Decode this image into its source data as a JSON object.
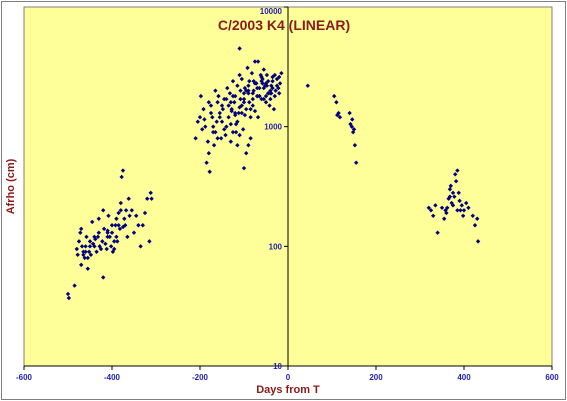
{
  "chart_data": {
    "type": "scatter",
    "title": "C/2003 K4 (LINEAR)",
    "xlabel": "Days from T",
    "ylabel": "Afrho (cm)",
    "xlim": [
      -600,
      600
    ],
    "ylim": [
      10,
      10000
    ],
    "yscale": "log",
    "xticks": [
      "-600",
      "-400",
      "-200",
      "0",
      "200",
      "400",
      "600"
    ],
    "yticks": [
      "10",
      "100",
      "1000",
      "10000"
    ],
    "grid": false,
    "legend": "none",
    "colors": {
      "plot_background": "#ffff99",
      "marker": "#000080",
      "title": "#8b1a1a",
      "tick_labels": "#1f1fb4"
    },
    "series": [
      {
        "x": [
          -500,
          -498,
          -485,
          -480,
          -478,
          -475,
          -472,
          -470,
          -468,
          -465,
          -462,
          -460,
          -458,
          -455,
          -452,
          -450,
          -448,
          -445,
          -443,
          -440,
          -438,
          -435,
          -432,
          -430,
          -428,
          -425,
          -422,
          -420,
          -418,
          -415,
          -412,
          -410,
          -408,
          -405,
          -402,
          -400,
          -398,
          -395,
          -392,
          -390,
          -388,
          -385,
          -382,
          -380,
          -378,
          -375,
          -372,
          -370,
          -368,
          -365,
          -362,
          -360,
          -355,
          -350,
          -345,
          -340,
          -335,
          -330,
          -325,
          -320,
          -315,
          -312,
          -310,
          -430,
          -420,
          -410,
          -400,
          -390,
          -385,
          -380,
          -375,
          -440,
          -450,
          -455,
          -460,
          -465,
          -470,
          -410,
          -395
        ],
        "y": [
          40,
          37,
          47,
          95,
          85,
          110,
          130,
          140,
          100,
          90,
          80,
          100,
          120,
          65,
          90,
          110,
          85,
          160,
          105,
          100,
          115,
          90,
          120,
          130,
          100,
          95,
          110,
          55,
          140,
          105,
          95,
          120,
          180,
          120,
          100,
          130,
          90,
          95,
          150,
          170,
          110,
          190,
          140,
          200,
          380,
          430,
          170,
          150,
          200,
          120,
          250,
          180,
          200,
          130,
          180,
          150,
          100,
          150,
          190,
          250,
          110,
          280,
          250,
          170,
          200,
          130,
          150,
          120,
          150,
          230,
          145,
          120,
          100,
          80,
          90,
          85,
          70,
          135,
          110
        ]
      },
      {
        "x": [
          -210,
          -205,
          -200,
          -198,
          -195,
          -192,
          -190,
          -188,
          -185,
          -182,
          -180,
          -178,
          -175,
          -172,
          -170,
          -168,
          -165,
          -162,
          -160,
          -158,
          -155,
          -152,
          -150,
          -148,
          -145,
          -142,
          -140,
          -138,
          -135,
          -132,
          -130,
          -128,
          -125,
          -122,
          -120,
          -118,
          -115,
          -112,
          -110,
          -108,
          -105,
          -102,
          -100,
          -98,
          -95,
          -92,
          -90,
          -88,
          -85,
          -82,
          -80,
          -78,
          -75,
          -72,
          -70,
          -68,
          -65,
          -62,
          -60,
          -58,
          -55,
          -52,
          -50,
          -48,
          -45,
          -42,
          -40,
          -38,
          -35,
          -32,
          -30,
          -28,
          -25,
          -22,
          -20,
          -18,
          -15,
          -180,
          -175,
          -170,
          -165,
          -160,
          -155,
          -150,
          -145,
          -140,
          -135,
          -130,
          -125,
          -120,
          -115,
          -110,
          -105,
          -100,
          -95,
          -90,
          -85,
          -80,
          -75,
          -70,
          -65,
          -60,
          -55,
          -50,
          -45,
          -40,
          -35,
          -30,
          -25,
          -20,
          -130,
          -120,
          -110,
          -100,
          -90,
          -80,
          -70,
          -60,
          -50,
          -40,
          -125,
          -115,
          -105,
          -95,
          -85,
          -75,
          -65,
          -55,
          -45,
          -35,
          -128,
          -118,
          -108,
          -98,
          -88,
          -78,
          -68,
          -58,
          -48,
          -38,
          -110,
          -100,
          -90
        ],
        "y": [
          800,
          1100,
          1200,
          1800,
          950,
          1400,
          1150,
          1000,
          500,
          750,
          600,
          420,
          1500,
          1200,
          900,
          700,
          2000,
          1100,
          1600,
          1800,
          1300,
          800,
          1500,
          1400,
          1700,
          850,
          1000,
          2100,
          1200,
          1900,
          750,
          1400,
          2400,
          1600,
          1800,
          1050,
          2200,
          1300,
          2700,
          1700,
          2500,
          950,
          1900,
          2100,
          1400,
          3100,
          1900,
          2400,
          1200,
          2800,
          1700,
          2000,
          3500,
          2300,
          1800,
          1200,
          2100,
          2700,
          1700,
          2500,
          3000,
          2200,
          1800,
          2700,
          2400,
          1500,
          1900,
          2200,
          2600,
          1400,
          2700,
          2000,
          2500,
          2100,
          1900,
          2300,
          2800,
          1600,
          1300,
          1000,
          900,
          800,
          1200,
          1100,
          950,
          1700,
          1500,
          1600,
          1800,
          1300,
          1100,
          1450,
          1300,
          1600,
          2000,
          2200,
          1400,
          1900,
          2300,
          2100,
          1800,
          2400,
          1700,
          1600,
          1900,
          2000,
          2100,
          1800,
          2200,
          2600,
          1050,
          1250,
          850,
          1700,
          2000,
          1500,
          1800,
          2600,
          2300,
          1700,
          900,
          700,
          1500,
          600,
          800,
          1350,
          1800,
          2100,
          1900,
          2400,
          1350,
          900,
          2000,
          1250,
          1600,
          2400,
          3500,
          2300,
          2200,
          1900,
          4500,
          450,
          700
        ]
      },
      {
        "x": [
          45,
          105,
          110,
          112,
          115,
          118,
          140,
          142,
          145,
          146,
          148,
          150,
          152,
          155
        ],
        "y": [
          2200,
          1800,
          1600,
          1250,
          1300,
          1200,
          1300,
          1050,
          1000,
          1150,
          900,
          950,
          700,
          500
        ]
      },
      {
        "x": [
          320,
          325,
          330,
          335,
          340,
          350,
          355,
          358,
          360,
          362,
          365,
          368,
          370,
          372,
          375,
          378,
          380,
          382,
          385,
          388,
          390,
          392,
          395,
          398,
          400,
          405,
          410,
          420,
          425,
          430,
          432,
          368,
          375,
          385
        ],
        "y": [
          210,
          200,
          180,
          220,
          130,
          210,
          170,
          200,
          190,
          210,
          250,
          300,
          320,
          230,
          220,
          260,
          400,
          350,
          430,
          280,
          240,
          200,
          220,
          180,
          200,
          230,
          210,
          180,
          150,
          170,
          110,
          260,
          280,
          200
        ]
      }
    ]
  }
}
